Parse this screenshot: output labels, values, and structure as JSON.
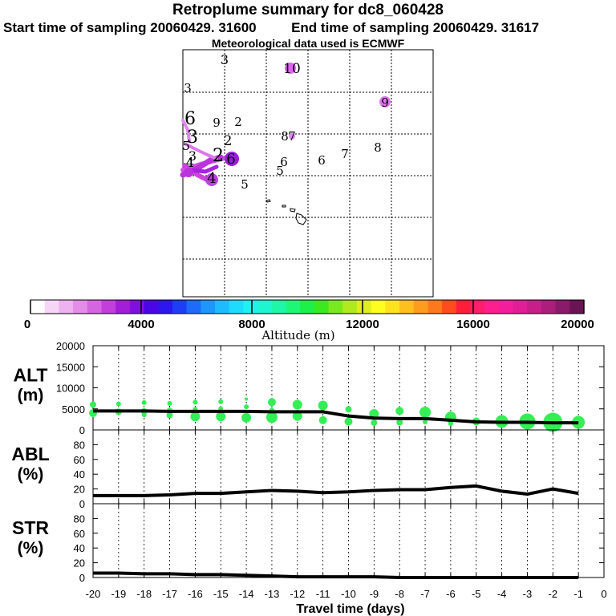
{
  "header": {
    "title": "Retroplume summary for dc8_060428",
    "start_label": "Start time of sampling 20060429. 31600",
    "end_label": "End time of sampling 20060429. 31617",
    "met_label": "Meteorological data used is ECMWF"
  },
  "map": {
    "day_markers": [
      {
        "label": "3"
      },
      {
        "label": "10"
      },
      {
        "label": "3"
      },
      {
        "label": "9"
      },
      {
        "label": "6"
      },
      {
        "label": "9"
      },
      {
        "label": "2"
      },
      {
        "label": "8"
      },
      {
        "label": "7"
      },
      {
        "label": "3"
      },
      {
        "label": "2"
      },
      {
        "label": "8"
      },
      {
        "label": "7"
      },
      {
        "label": "6"
      },
      {
        "label": "6"
      },
      {
        "label": "5"
      },
      {
        "label": "3"
      },
      {
        "label": "2"
      },
      {
        "label": "6"
      },
      {
        "label": "4"
      },
      {
        "label": "4"
      },
      {
        "label": "5"
      },
      {
        "label": "5"
      }
    ]
  },
  "colorbar": {
    "ticks": [
      "0",
      "4000",
      "8000",
      "12000",
      "16000",
      "20000"
    ],
    "label": "Altitude (m)",
    "colors": [
      "#ffffff",
      "#f7d5f7",
      "#eeb2f0",
      "#e38ce8",
      "#d566e0",
      "#c23fdc",
      "#a11fd9",
      "#7f10e0",
      "#4b06e6",
      "#2d16ee",
      "#1e3ef6",
      "#1e6bfa",
      "#1e96fc",
      "#1ebcfe",
      "#1edcfe",
      "#1ef2f0",
      "#1ef6d2",
      "#1ef6a8",
      "#1ef678",
      "#1ef04a",
      "#3aea1e",
      "#7ae81e",
      "#b0ea1e",
      "#deee1e",
      "#fefe1e",
      "#fee21e",
      "#fec01e",
      "#fe9c1e",
      "#fe781e",
      "#fe4c1e",
      "#fe1e3a",
      "#fe1e6a",
      "#fe1e8e",
      "#f41e9c",
      "#e01e96",
      "#c81e8a",
      "#aa1e7c",
      "#8a1a6a",
      "#6a1456"
    ]
  },
  "chart_data": [
    {
      "type": "line",
      "panel": "ALT",
      "ylabel_lines": [
        "ALT",
        "(m)"
      ],
      "ylim": [
        0,
        20000
      ],
      "yticks": [
        "0",
        "5000",
        "10000",
        "15000",
        "20000"
      ],
      "x": [
        -20,
        -19,
        -18,
        -17,
        -16,
        -15,
        -14,
        -13,
        -12,
        -11,
        -10,
        -9,
        -8,
        -7,
        -6,
        -5,
        -4,
        -3,
        -2,
        -1
      ],
      "series": [
        {
          "name": "median altitude",
          "values": [
            4500,
            4500,
            4500,
            4400,
            4400,
            4400,
            4400,
            4300,
            4300,
            4300,
            3300,
            2800,
            2700,
            2700,
            2300,
            1900,
            1800,
            1800,
            1700,
            1700
          ]
        }
      ],
      "scatter": {
        "color": "#33ee55",
        "points": [
          {
            "x": -20,
            "y": 6000,
            "s": 4
          },
          {
            "x": -20,
            "y": 4000,
            "s": 5
          },
          {
            "x": -19,
            "y": 6200,
            "s": 3
          },
          {
            "x": -19,
            "y": 4300,
            "s": 4
          },
          {
            "x": -18,
            "y": 6500,
            "s": 3
          },
          {
            "x": -18,
            "y": 4400,
            "s": 4
          },
          {
            "x": -18,
            "y": 3600,
            "s": 3
          },
          {
            "x": -17,
            "y": 6300,
            "s": 3
          },
          {
            "x": -17,
            "y": 4500,
            "s": 4
          },
          {
            "x": -17,
            "y": 3500,
            "s": 4
          },
          {
            "x": -16,
            "y": 6600,
            "s": 3
          },
          {
            "x": -16,
            "y": 4900,
            "s": 3
          },
          {
            "x": -16,
            "y": 3200,
            "s": 6
          },
          {
            "x": -15,
            "y": 6700,
            "s": 3
          },
          {
            "x": -15,
            "y": 5000,
            "s": 3
          },
          {
            "x": -15,
            "y": 3200,
            "s": 6
          },
          {
            "x": -14,
            "y": 7300,
            "s": 2
          },
          {
            "x": -14,
            "y": 5500,
            "s": 3
          },
          {
            "x": -14,
            "y": 2900,
            "s": 6
          },
          {
            "x": -13,
            "y": 6600,
            "s": 5
          },
          {
            "x": -13,
            "y": 4700,
            "s": 3
          },
          {
            "x": -13,
            "y": 3000,
            "s": 7
          },
          {
            "x": -12,
            "y": 6000,
            "s": 6
          },
          {
            "x": -12,
            "y": 3300,
            "s": 6
          },
          {
            "x": -11,
            "y": 5800,
            "s": 6
          },
          {
            "x": -11,
            "y": 2300,
            "s": 5
          },
          {
            "x": -10,
            "y": 4900,
            "s": 4
          },
          {
            "x": -10,
            "y": 2000,
            "s": 5
          },
          {
            "x": -9,
            "y": 3800,
            "s": 6
          },
          {
            "x": -9,
            "y": 1700,
            "s": 4
          },
          {
            "x": -8,
            "y": 4500,
            "s": 5
          },
          {
            "x": -8,
            "y": 1800,
            "s": 4
          },
          {
            "x": -7,
            "y": 4200,
            "s": 7
          },
          {
            "x": -7,
            "y": 1900,
            "s": 3
          },
          {
            "x": -6,
            "y": 3000,
            "s": 7
          },
          {
            "x": -6,
            "y": 1500,
            "s": 3
          },
          {
            "x": -5,
            "y": 2000,
            "s": 5
          },
          {
            "x": -4,
            "y": 2000,
            "s": 8
          },
          {
            "x": -3,
            "y": 2000,
            "s": 10
          },
          {
            "x": -2,
            "y": 1800,
            "s": 12
          },
          {
            "x": -1,
            "y": 1800,
            "s": 8
          }
        ]
      }
    },
    {
      "type": "line",
      "panel": "ABL",
      "ylabel_lines": [
        "ABL",
        "(%)"
      ],
      "ylim": [
        0,
        100
      ],
      "yticks": [
        "0",
        "20",
        "40",
        "60",
        "80"
      ],
      "x": [
        -20,
        -19,
        -18,
        -17,
        -16,
        -15,
        -14,
        -13,
        -12,
        -11,
        -10,
        -9,
        -8,
        -7,
        -6,
        -5,
        -4,
        -3,
        -2,
        -1
      ],
      "series": [
        {
          "name": "fraction in ABL",
          "values": [
            11,
            11,
            11,
            12,
            14,
            14,
            16,
            18,
            17,
            15,
            16,
            18,
            19,
            19,
            22,
            24,
            17,
            13,
            20,
            14
          ]
        }
      ]
    },
    {
      "type": "line",
      "panel": "STR",
      "ylabel_lines": [
        "STR",
        "(%)"
      ],
      "ylim": [
        0,
        100
      ],
      "yticks": [
        "0",
        "20",
        "40",
        "60",
        "80"
      ],
      "x": [
        -20,
        -19,
        -18,
        -17,
        -16,
        -15,
        -14,
        -13,
        -12,
        -11,
        -10,
        -9,
        -8,
        -7,
        -6,
        -5,
        -4,
        -3,
        -2,
        -1
      ],
      "series": [
        {
          "name": "fraction in stratosphere",
          "values": [
            6,
            6,
            5,
            5,
            4,
            4,
            3,
            2,
            1,
            1,
            1,
            1,
            0,
            0,
            0,
            0,
            0,
            0,
            0,
            0
          ]
        }
      ]
    }
  ],
  "xaxis": {
    "ticks": [
      "-20",
      "-19",
      "-18",
      "-17",
      "-16",
      "-15",
      "-14",
      "-13",
      "-12",
      "-11",
      "-10",
      "-9",
      "-8",
      "-7",
      "-6",
      "-5",
      "-4",
      "-3",
      "-2",
      "-1",
      "0"
    ],
    "label": "Travel time (days)"
  }
}
